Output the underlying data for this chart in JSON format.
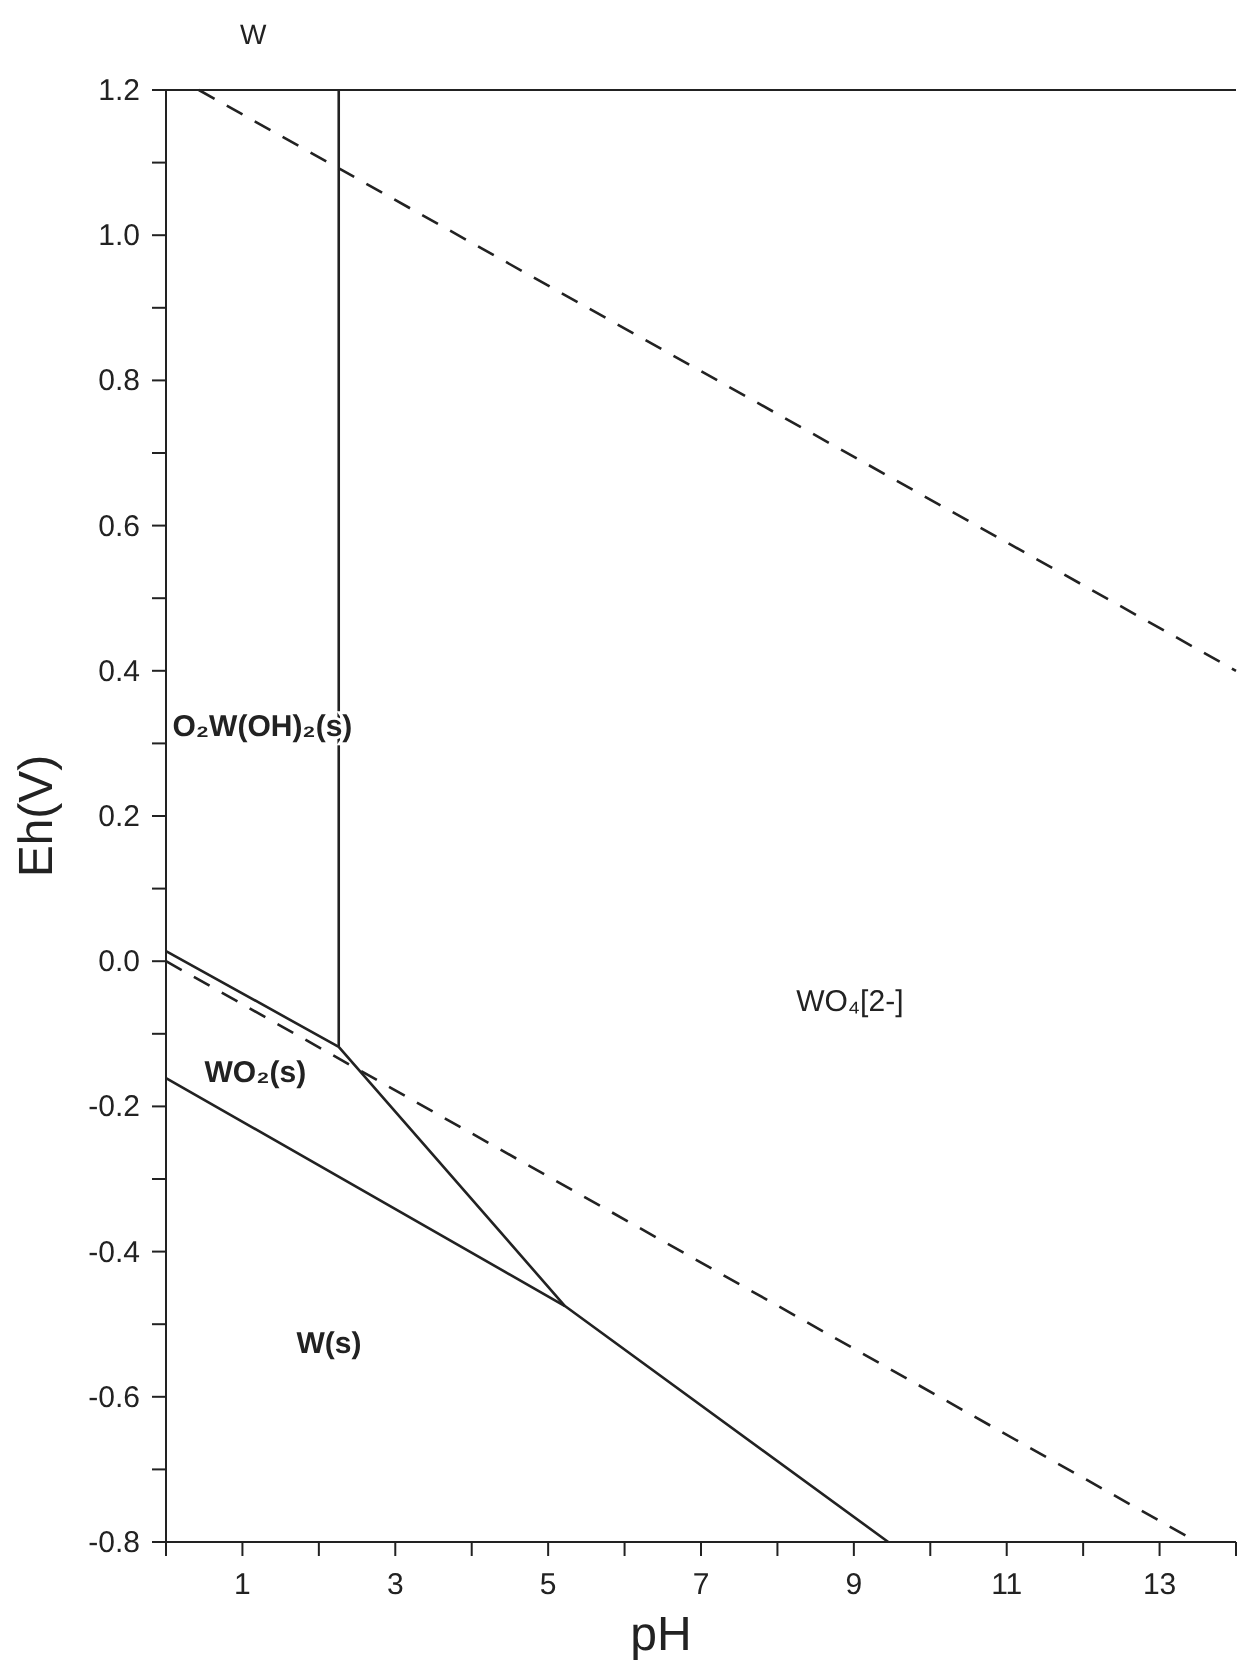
{
  "chart_data": {
    "type": "line",
    "title": "W",
    "xlabel": "pH",
    "ylabel": "Eh(V)",
    "xlim": [
      0,
      14
    ],
    "ylim": [
      -0.8,
      1.2
    ],
    "xticks": [
      {
        "value": 0,
        "label": null
      },
      1,
      {
        "value": 2,
        "label": null
      },
      3,
      {
        "value": 4,
        "label": null
      },
      5,
      {
        "value": 6,
        "label": null
      },
      7,
      {
        "value": 8,
        "label": null
      },
      9,
      {
        "value": 10,
        "label": null
      },
      11,
      {
        "value": 12,
        "label": null
      },
      13,
      {
        "value": 14,
        "label": null
      }
    ],
    "yticks": [
      {
        "value": -0.8,
        "label": "-0.8"
      },
      {
        "value": -0.7,
        "label": null
      },
      {
        "value": -0.6,
        "label": "-0.6"
      },
      {
        "value": -0.5,
        "label": null
      },
      {
        "value": -0.4,
        "label": "-0.4"
      },
      {
        "value": -0.3,
        "label": null
      },
      {
        "value": -0.2,
        "label": "-0.2"
      },
      {
        "value": -0.1,
        "label": null
      },
      {
        "value": 0,
        "label": "0.0"
      },
      {
        "value": 0.1,
        "label": null
      },
      {
        "value": 0.2,
        "label": "0.2"
      },
      {
        "value": 0.3,
        "label": null
      },
      {
        "value": 0.4,
        "label": "0.4"
      },
      {
        "value": 0.5,
        "label": null
      },
      {
        "value": 0.6,
        "label": "0.6"
      },
      {
        "value": 0.7,
        "label": null
      },
      {
        "value": 0.8,
        "label": "0.8"
      },
      {
        "value": 0.9,
        "label": null
      },
      {
        "value": 1.0,
        "label": "1.0"
      },
      {
        "value": 1.1,
        "label": null
      },
      {
        "value": 1.2,
        "label": "1.2"
      }
    ],
    "grid": false,
    "marker": "none",
    "series": [
      {
        "color": "#222222",
        "line_style": "dashed",
        "x": [
          0.43,
          14
        ],
        "values": [
          1.2,
          0.4
        ]
      },
      {
        "color": "#222222",
        "line_style": "dashed",
        "x": [
          0,
          13.49
        ],
        "values": [
          0,
          -0.8
        ]
      },
      {
        "color": "#222222",
        "line_style": "solid",
        "x": [
          2.26,
          2.26
        ],
        "values": [
          1.2,
          -0.118
        ]
      },
      {
        "color": "#222222",
        "line_style": "solid",
        "x": [
          0,
          2.26,
          5.22
        ],
        "values": [
          0.014,
          -0.118,
          -0.475
        ]
      },
      {
        "color": "#222222",
        "line_style": "solid",
        "x": [
          0,
          5.22,
          9.45
        ],
        "values": [
          -0.161,
          -0.475,
          -0.8
        ]
      }
    ],
    "annotations": [
      "O₂W(OH)₂(s)",
      "WO₂(s)",
      "W(s)",
      "WO₄[2-]"
    ]
  }
}
